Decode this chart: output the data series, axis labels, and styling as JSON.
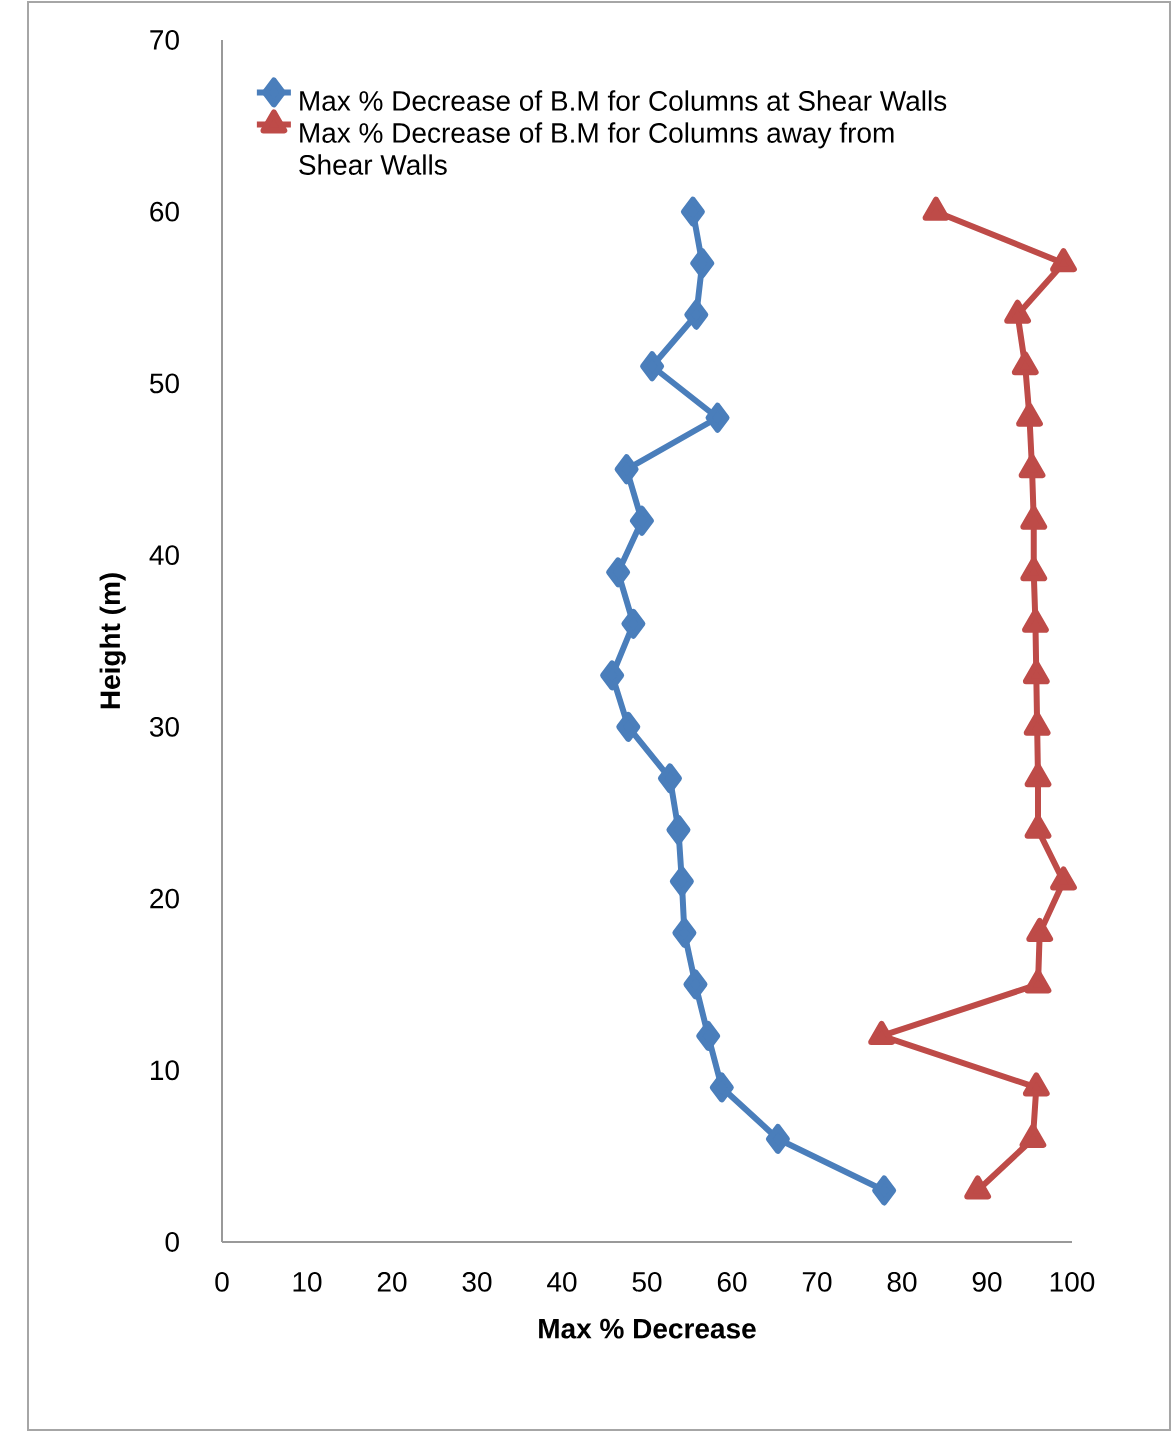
{
  "chart_data": {
    "type": "line",
    "xlabel": "Max % Decrease",
    "ylabel": "Height (m)",
    "xlim": [
      0,
      100
    ],
    "ylim": [
      0,
      70
    ],
    "xticks": [
      0,
      10,
      20,
      30,
      40,
      50,
      60,
      70,
      80,
      90,
      100
    ],
    "yticks": [
      0,
      10,
      20,
      30,
      40,
      50,
      60,
      70
    ],
    "grid": false,
    "legend": "top left",
    "series": [
      {
        "name": "Max % Decrease of B.M for Columns at Shear Walls",
        "color": "#4a7ebb",
        "marker": "diamond",
        "x": [
          77.9,
          65.4,
          58.8,
          57.2,
          55.7,
          54.4,
          54.1,
          53.7,
          52.7,
          47.8,
          45.9,
          48.4,
          46.6,
          49.4,
          47.6,
          58.3,
          50.6,
          55.8,
          56.5,
          55.4
        ],
        "values": [
          3,
          6,
          9,
          12,
          15,
          18,
          21,
          24,
          27,
          30,
          33,
          36,
          39,
          42,
          45,
          48,
          51,
          54,
          57,
          60
        ]
      },
      {
        "name": "Max % Decrease of B.M for Columns away from Shear Walls",
        "color": "#be4b48",
        "marker": "triangle",
        "x": [
          88.9,
          95.4,
          95.8,
          77.6,
          96.0,
          96.2,
          99.0,
          96.0,
          96.0,
          95.9,
          95.8,
          95.7,
          95.5,
          95.5,
          95.3,
          95.0,
          94.5,
          93.6,
          99.0,
          84.0
        ],
        "values": [
          3,
          6,
          9,
          12,
          15,
          18,
          21,
          24,
          27,
          30,
          33,
          36,
          39,
          42,
          45,
          48,
          51,
          54,
          57,
          60
        ]
      }
    ]
  }
}
